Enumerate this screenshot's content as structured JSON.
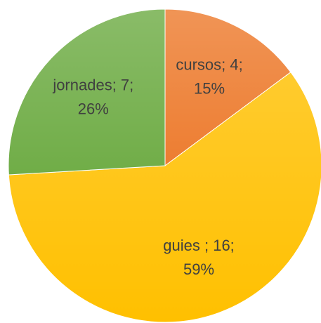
{
  "chart_data": {
    "type": "pie",
    "categories": [
      "cursos",
      "guies ",
      "jornades"
    ],
    "values": [
      4,
      16,
      7
    ],
    "value_labels": [
      "cursos; 4;",
      "guies ; 16;",
      "jornades; 7;"
    ],
    "percents": [
      15,
      59,
      26
    ],
    "percent_labels": [
      "15%",
      "59%",
      "26%"
    ],
    "colors": [
      "#ed7d31",
      "#ffc000",
      "#70ad47"
    ]
  }
}
